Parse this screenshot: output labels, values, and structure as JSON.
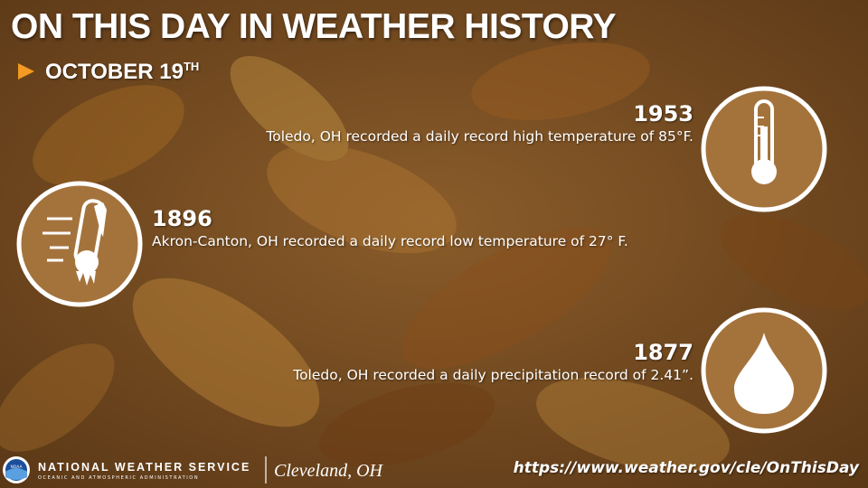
{
  "header": {
    "title": "ON THIS DAY IN WEATHER HISTORY",
    "date": "OCTOBER 19",
    "date_suffix": "TH"
  },
  "events": [
    {
      "year": "1953",
      "text": "Toledo, OH recorded a daily record high temperature of 85°F."
    },
    {
      "year": "1896",
      "text": "Akron-Canton, OH recorded a daily record low temperature of 27° F."
    },
    {
      "year": "1877",
      "text": "Toledo, OH recorded a daily precipitation record of 2.41”."
    }
  ],
  "footer": {
    "logo": "NOAA",
    "agency": "NATIONAL WEATHER SERVICE",
    "agency_sub": "OCEANIC AND ATMOSPHERIC ADMINISTRATION",
    "office": "Cleveland, OH",
    "url": "https://www.weather.gov/cle/OnThisDay"
  }
}
